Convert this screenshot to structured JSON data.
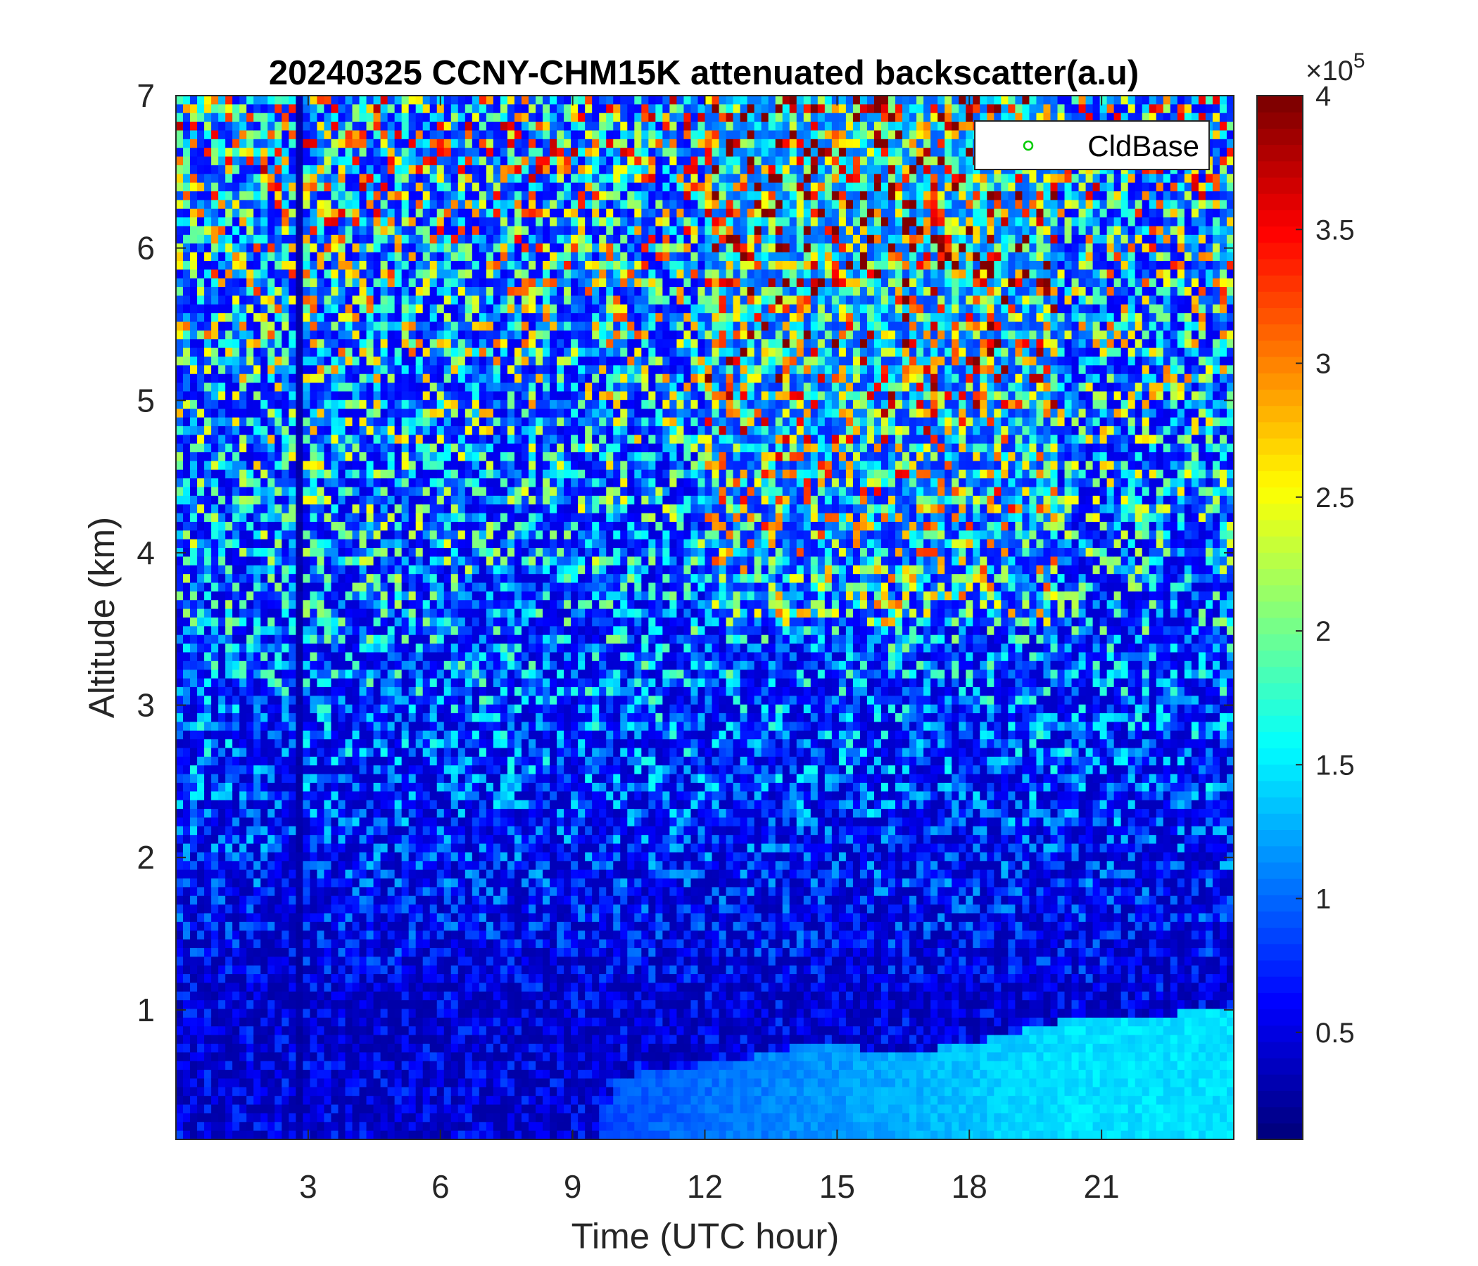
{
  "chart_data": {
    "type": "heatmap",
    "title": "20240325 CCNY-CHM15K attenuated backscatter(a.u)",
    "xlabel": "Time (UTC hour)",
    "ylabel": "Altitude (km)",
    "xlim": [
      0,
      24
    ],
    "ylim": [
      0.15,
      7
    ],
    "x_ticks": [
      3,
      6,
      9,
      12,
      15,
      18,
      21
    ],
    "y_ticks": [
      1,
      2,
      3,
      4,
      5,
      6,
      7
    ],
    "colorbar": {
      "colormap": "jet",
      "range": [
        0.1,
        4
      ],
      "ticks": [
        0.5,
        1,
        1.5,
        2,
        2.5,
        3,
        3.5,
        4
      ],
      "exponent_label": "×10",
      "exponent_power": "5"
    },
    "legend": {
      "entries": [
        {
          "label": "CldBase",
          "marker": "circle",
          "color": "#00cc00"
        }
      ],
      "placement": "top-right"
    },
    "features": {
      "low_signal_column_hour": 2.8,
      "boundary_layer_top_km": [
        [
          9.6,
          0.15
        ],
        [
          10.0,
          0.55
        ],
        [
          11.0,
          0.62
        ],
        [
          12.0,
          0.64
        ],
        [
          13.0,
          0.68
        ],
        [
          14.0,
          0.75
        ],
        [
          15.0,
          0.78
        ],
        [
          16.0,
          0.72
        ],
        [
          17.0,
          0.74
        ],
        [
          18.0,
          0.78
        ],
        [
          19.0,
          0.85
        ],
        [
          20.0,
          0.92
        ],
        [
          21.0,
          0.95
        ],
        [
          22.0,
          0.97
        ],
        [
          23.0,
          0.98
        ],
        [
          24.0,
          1.0
        ]
      ]
    }
  }
}
